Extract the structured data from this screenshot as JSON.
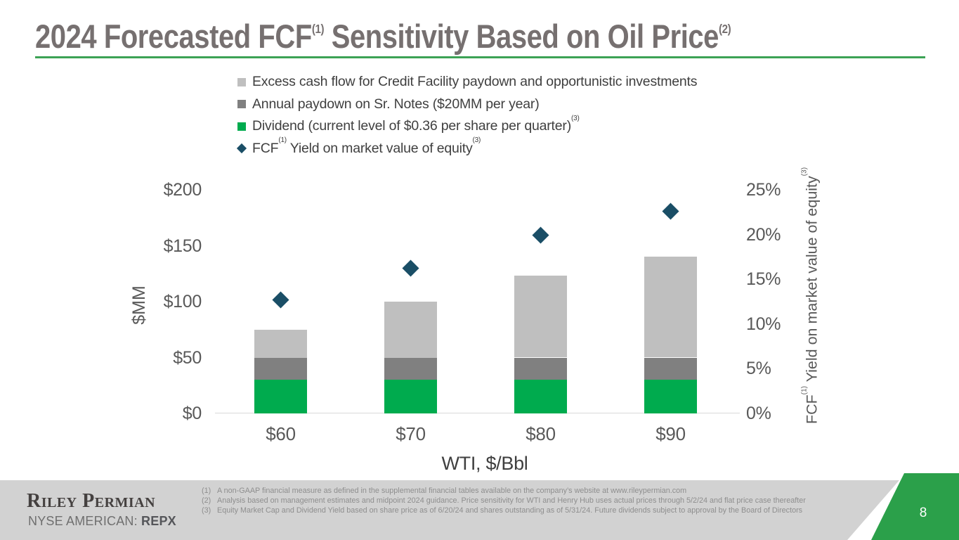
{
  "colors": {
    "title_text": "#767070",
    "title_rule_green": "#3ca355",
    "bar_green": "#00ab4e",
    "bar_dark_gray": "#808080",
    "bar_light_gray": "#bfbfbf",
    "diamond_navy": "#1a4e66",
    "footer_gray": "#d2d2d2",
    "corner_green": "#2ba04a",
    "axis_text": "#595959"
  },
  "slide": {
    "title_parts": [
      {
        "t": "2024 Forecasted FCF"
      },
      {
        "sup": "(1)"
      },
      {
        "t": " Sensitivity Based on Oil Price"
      },
      {
        "sup": "(2)"
      }
    ]
  },
  "legend": {
    "items": [
      {
        "marker": "square",
        "color": "bar_light_gray",
        "parts": [
          {
            "t": "Excess cash flow for Credit Facility paydown and opportunistic investments"
          }
        ]
      },
      {
        "marker": "square",
        "color": "bar_dark_gray",
        "parts": [
          {
            "t": "Annual paydown on Sr. Notes ($20MM per year)"
          }
        ]
      },
      {
        "marker": "square",
        "color": "bar_green",
        "parts": [
          {
            "t": "Dividend (current level of $0.36 per share per quarter)"
          },
          {
            "sup": "(3)"
          }
        ]
      },
      {
        "marker": "diamond",
        "color": "diamond_navy",
        "parts": [
          {
            "t": "FCF"
          },
          {
            "sup": "(1)"
          },
          {
            "t": " Yield on market value of equity"
          },
          {
            "sup": "(3)"
          }
        ]
      }
    ]
  },
  "chart_data": {
    "type": "combo-stacked-bar-with-scatter",
    "categories": [
      "$60",
      "$70",
      "$80",
      "$90"
    ],
    "series": [
      {
        "name": "Dividend (current level of $0.36 per share per quarter)",
        "type": "bar",
        "color": "bar_green",
        "values": [
          30,
          30,
          30,
          30
        ]
      },
      {
        "name": "Annual paydown on Sr. Notes ($20MM per year)",
        "type": "bar",
        "color": "bar_dark_gray",
        "values": [
          20,
          20,
          20,
          20
        ]
      },
      {
        "name": "Excess cash flow for Credit Facility paydown and opportunistic investments",
        "type": "bar",
        "color": "bar_light_gray",
        "values": [
          25,
          50,
          73,
          90
        ]
      },
      {
        "name": "FCF Yield on market value of equity",
        "type": "scatter",
        "axis": "right",
        "color": "diamond_navy",
        "values": [
          12.7,
          16.2,
          19.9,
          22.6
        ]
      }
    ],
    "bar_totals_mm": [
      75,
      100,
      123,
      140
    ],
    "left_axis": {
      "label": "$MM",
      "min": 0,
      "max": 200,
      "ticks": [
        "$0",
        "$50",
        "$100",
        "$150",
        "$200"
      ]
    },
    "right_axis": {
      "min": 0,
      "max": 25,
      "ticks": [
        "0%",
        "5%",
        "10%",
        "15%",
        "20%",
        "25%"
      ],
      "label_parts": [
        {
          "t": "FCF"
        },
        {
          "sup": "(1)"
        },
        {
          "t": " Yield on market value of equity"
        },
        {
          "sup": "(3)"
        }
      ]
    },
    "x_axis": {
      "label": "WTI, $/Bbl"
    },
    "grid": false,
    "legend_position": "top"
  },
  "footer": {
    "brand": "Riley Permian",
    "listing_label": "NYSE AMERICAN: ",
    "ticker": "REPX",
    "page_number": "8",
    "footnotes": [
      {
        "num": "(1)",
        "text": "A non-GAAP financial measure as defined in the supplemental financial tables available on the company’s website at www.rileypermian.com"
      },
      {
        "num": "(2)",
        "text": "Analysis based on management estimates and midpoint 2024 guidance. Price sensitivity for WTI and Henry Hub uses actual prices through 5/2/24 and flat price case thereafter"
      },
      {
        "num": "(3)",
        "text": "Equity Market Cap and Dividend Yield based on share price as of 6/20/24 and shares outstanding as of 5/31/24. Future dividends subject to approval by the Board of Directors"
      }
    ]
  }
}
